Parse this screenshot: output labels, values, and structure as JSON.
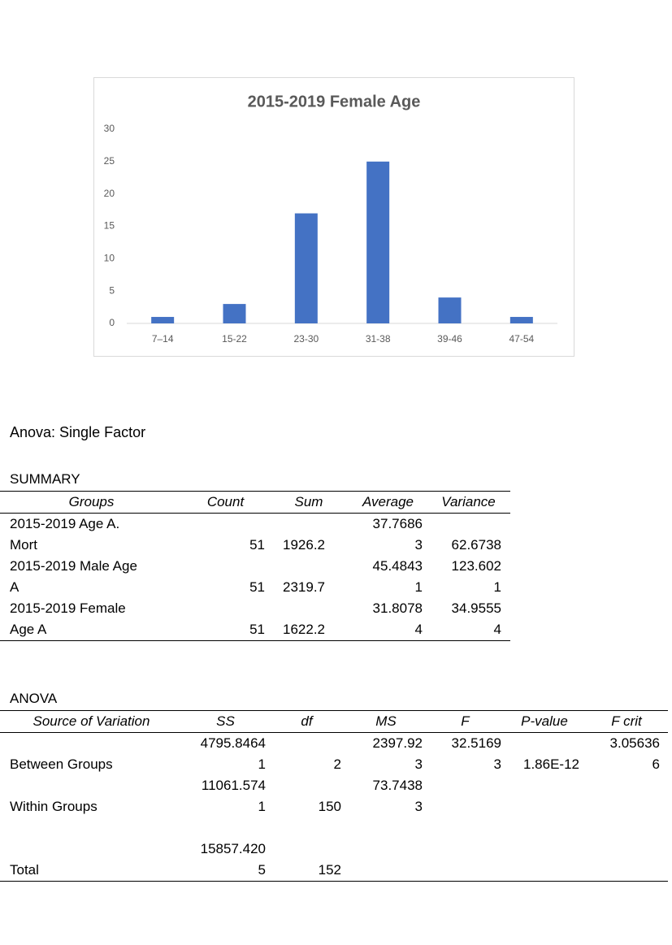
{
  "chart_data": {
    "type": "bar",
    "title": "2015-2019 Female Age",
    "categories": [
      "7–14",
      "15-22",
      "23-30",
      "31-38",
      "39-46",
      "47-54"
    ],
    "values": [
      1,
      3,
      17,
      25,
      4,
      1
    ],
    "color": "#4472c4",
    "ylim": [
      0,
      30
    ],
    "yticks": [
      0,
      5,
      10,
      15,
      20,
      25,
      30
    ],
    "grid": false
  },
  "anova_title": "Anova: Single Factor",
  "summary": {
    "title": "SUMMARY",
    "columns": [
      "Groups",
      "Count",
      "Sum",
      "Average",
      "Variance"
    ],
    "rows": [
      [
        "2015-2019 Age A. Mort",
        51,
        "1926.2",
        "37.76863",
        "62.6738"
      ],
      [
        "2015-2019 Male Age A",
        51,
        "2319.7",
        "45.48431",
        "123.6021"
      ],
      [
        "2015-2019 Female Age A",
        51,
        "1622.2",
        "31.80784",
        "34.95554"
      ]
    ]
  },
  "anova": {
    "title": "ANOVA",
    "columns": [
      "Source of Variation",
      "SS",
      "df",
      "MS",
      "F",
      "P-value",
      "F crit"
    ],
    "rows": [
      [
        "Between Groups",
        "4795.84641",
        2,
        "2397.923",
        "32.51693",
        "1.86E-12",
        "3.056366"
      ],
      [
        "Within Groups",
        "11061.5741",
        150,
        "73.74383",
        null,
        null,
        null
      ],
      [
        "Total",
        "15857.4205",
        152,
        null,
        null,
        null,
        null
      ]
    ]
  }
}
